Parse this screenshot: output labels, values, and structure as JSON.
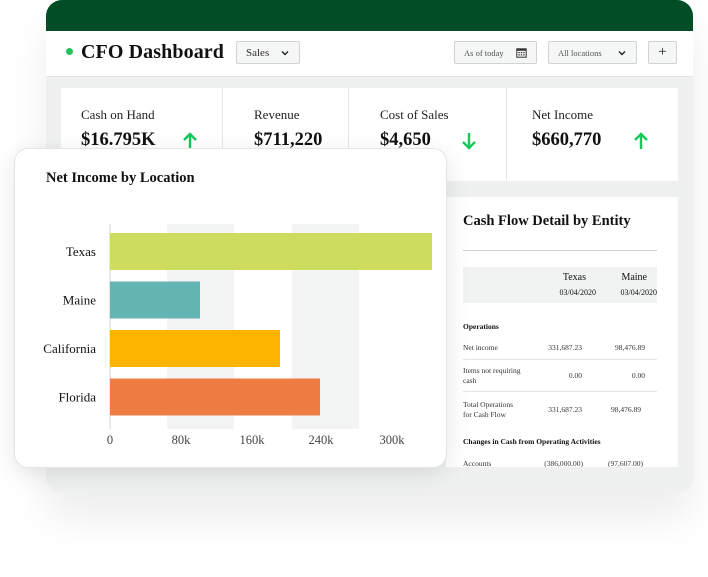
{
  "header": {
    "title": "CFO Dashboard",
    "view_select": "Sales",
    "date_select": "As of today",
    "location_select": "All locations",
    "add_label": "+"
  },
  "kpis": [
    {
      "label": "Cash on Hand",
      "value": "$16.795K",
      "trend": "up"
    },
    {
      "label": "Revenue",
      "value": "$711,220",
      "trend": ""
    },
    {
      "label": "Cost of Sales",
      "value": "$4,650",
      "trend": "down"
    },
    {
      "label": "Net Income",
      "value": "$660,770",
      "trend": "up"
    }
  ],
  "colors": {
    "brand": "#014d26",
    "up": "#16c75a",
    "down": "#16c75a",
    "status_dot": "#21c45a"
  },
  "cash_flow": {
    "title": "Cash Flow Detail by Entity",
    "columns": [
      {
        "name": "Texas",
        "date": "03/04/2020"
      },
      {
        "name": "Maine",
        "date": "03/04/2020"
      }
    ],
    "sections": [
      {
        "title": "Operations",
        "rows": [
          {
            "label": "Net income",
            "values": [
              "331,687.23",
              "98,476.89"
            ]
          },
          {
            "label": "Items not requiring cash",
            "values": [
              "0.00",
              "0.00"
            ]
          },
          {
            "label": "Total Operations for Cash Flow",
            "values": [
              "331,687.23",
              "98,476.89"
            ]
          }
        ]
      },
      {
        "title": "Changes in Cash from Operating Activities",
        "rows": [
          {
            "label": "Accounts",
            "values": [
              "(386,000.00)",
              "(97,607.00)"
            ]
          }
        ]
      }
    ]
  },
  "chart_data": {
    "type": "bar",
    "orientation": "horizontal",
    "title": "Net Income by Location",
    "categories": [
      "Texas",
      "Maine",
      "California",
      "Florida"
    ],
    "values": [
      322000,
      90000,
      170000,
      210000
    ],
    "colors": [
      "#cddc5e",
      "#62b5b3",
      "#fdb400",
      "#ef7d43"
    ],
    "xlim": [
      0,
      320000
    ],
    "xticks": [
      "0",
      "80k",
      "160k",
      "240k",
      "300k"
    ],
    "xlabel": "",
    "ylabel": ""
  }
}
